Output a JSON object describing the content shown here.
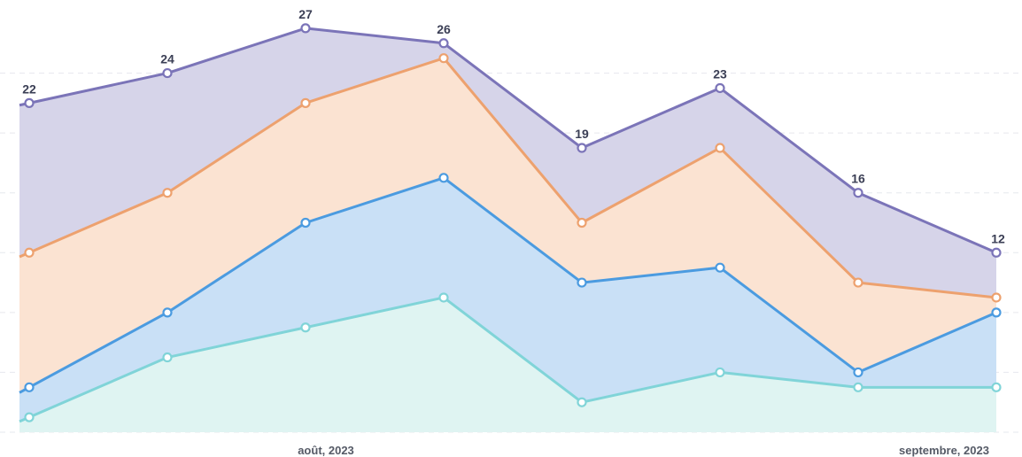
{
  "chart_data": {
    "type": "area",
    "stacked": true,
    "x_tick_labels": [
      "août, 2023",
      "septembre, 2023"
    ],
    "ylim": [
      0,
      28
    ],
    "grid": true,
    "series": [
      {
        "color": "#80d4d8",
        "fill": "#dff4f2",
        "values": [
          1,
          5,
          7,
          9,
          2,
          4,
          3,
          3
        ]
      },
      {
        "color": "#4b9be0",
        "fill": "#c9e0f6",
        "values": [
          2,
          3,
          7,
          8,
          8,
          7,
          1,
          5
        ]
      },
      {
        "color": "#eda16e",
        "fill": "#fbe3d2",
        "values": [
          9,
          8,
          8,
          8,
          4,
          8,
          6,
          1
        ]
      },
      {
        "color": "#7b74b8",
        "fill": "#d6d4e9",
        "values": [
          10,
          8,
          5,
          1,
          5,
          4,
          6,
          3
        ]
      }
    ],
    "totals": [
      22,
      24,
      27,
      26,
      19,
      23,
      16,
      12
    ],
    "total_labels": [
      "22",
      "24",
      "27",
      "26",
      "19",
      "23",
      "16",
      "12"
    ]
  }
}
